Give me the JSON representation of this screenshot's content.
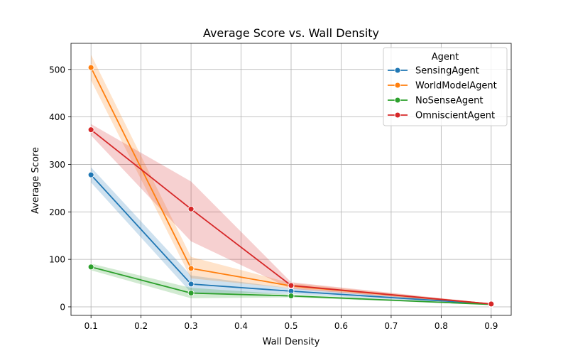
{
  "chart_data": {
    "type": "line",
    "title": "Average Score vs. Wall Density",
    "xlabel": "Wall Density",
    "ylabel": "Average Score",
    "xlim": [
      0.06,
      0.94
    ],
    "ylim": [
      -18,
      555
    ],
    "xticks": [
      0.1,
      0.2,
      0.3,
      0.4,
      0.5,
      0.6,
      0.7,
      0.8,
      0.9
    ],
    "xtick_labels": [
      "0.1",
      "0.2",
      "0.3",
      "0.4",
      "0.5",
      "0.6",
      "0.7",
      "0.8",
      "0.9"
    ],
    "yticks": [
      0,
      100,
      200,
      300,
      400,
      500
    ],
    "ytick_labels": [
      "0",
      "100",
      "200",
      "300",
      "400",
      "500"
    ],
    "grid": true,
    "legend": {
      "title": "Agent",
      "placement": "top-right"
    },
    "series": [
      {
        "name": "SensingAgent",
        "color": "#1f77b4",
        "x": [
          0.1,
          0.3,
          0.5,
          0.9
        ],
        "y": [
          278,
          48,
          33,
          6
        ],
        "ci_low": [
          262,
          30,
          27,
          5
        ],
        "ci_high": [
          294,
          66,
          39,
          7
        ]
      },
      {
        "name": "WorldModelAgent",
        "color": "#ff7f0e",
        "x": [
          0.1,
          0.3,
          0.5,
          0.9
        ],
        "y": [
          504,
          81,
          44,
          6
        ],
        "ci_low": [
          477,
          60,
          39,
          5
        ],
        "ci_high": [
          531,
          105,
          50,
          7
        ]
      },
      {
        "name": "NoSenseAgent",
        "color": "#2ca02c",
        "x": [
          0.1,
          0.3,
          0.5,
          0.9
        ],
        "y": [
          84,
          29,
          23,
          5
        ],
        "ci_low": [
          77,
          18,
          20,
          4
        ],
        "ci_high": [
          91,
          40,
          26,
          6
        ]
      },
      {
        "name": "OmniscientAgent",
        "color": "#d62728",
        "x": [
          0.1,
          0.3,
          0.5,
          0.9
        ],
        "y": [
          373,
          206,
          45,
          6
        ],
        "ci_low": [
          361,
          138,
          38,
          5
        ],
        "ci_high": [
          385,
          264,
          52,
          7
        ]
      }
    ]
  }
}
